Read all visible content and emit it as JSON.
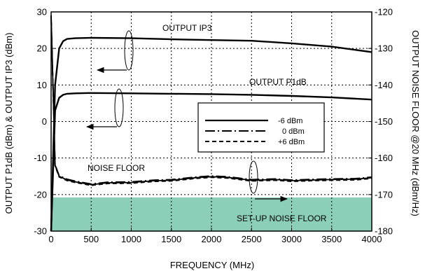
{
  "chart_data": {
    "type": "line",
    "xlabel": "FREQUENCY (MHz)",
    "ylabel": "OUTPUT P1dB (dBm) & OUTPUT IP3 (dBm)",
    "ylabel_right": "OUTPUT NOISE FLOOR @20 MHz (dBm/Hz)",
    "xlim": [
      0,
      4000
    ],
    "ylim": [
      -30,
      30
    ],
    "ylim_right": [
      -180,
      -120
    ],
    "x_ticks": [
      "0",
      "500",
      "1000",
      "1500",
      "2000",
      "2500",
      "3000",
      "3500",
      "4000"
    ],
    "y_ticks": [
      "-30",
      "-20",
      "-10",
      "0",
      "10",
      "20",
      "30"
    ],
    "y_ticks_right": [
      "-180",
      "-170",
      "-160",
      "-150",
      "-140",
      "-130",
      "-120"
    ],
    "grid": true,
    "colors": {
      "line": "#000000",
      "shade": "#8ccfb8"
    },
    "legend": {
      "position": "center-right",
      "entries": [
        {
          "label": "-6 dBm",
          "style": "solid"
        },
        {
          "label": "0 dBm",
          "style": "dash-dot"
        },
        {
          "label": "+6 dBm",
          "style": "dashed"
        }
      ]
    },
    "annotations": {
      "ip3": "OUTPUT IP3",
      "p1db": "OUTPUT P1dB",
      "noise": "NOISE FLOOR",
      "setup": "SET-UP NOISE FLOOR"
    },
    "series": [
      {
        "group": "OUTPUT IP3",
        "axis": "left",
        "x": [
          0,
          50,
          100,
          150,
          200,
          300,
          500,
          1000,
          1500,
          2000,
          2500,
          3000,
          3500,
          4000
        ],
        "values": [
          -30,
          10,
          20,
          22,
          22.6,
          22.8,
          22.9,
          22.8,
          22.5,
          22.3,
          22.1,
          21.4,
          20.5,
          19
        ]
      },
      {
        "group": "OUTPUT P1dB",
        "axis": "left",
        "x": [
          0,
          50,
          100,
          150,
          200,
          300,
          500,
          1000,
          1500,
          2000,
          2500,
          3000,
          3500,
          4000
        ],
        "values": [
          -30,
          3,
          6.5,
          7.3,
          7.6,
          7.7,
          7.8,
          7.7,
          7.6,
          7.5,
          7.3,
          7,
          6.6,
          6
        ]
      },
      {
        "group": "NOISE FLOOR",
        "axis": "right",
        "style": "solid",
        "x": [
          0,
          50,
          100,
          200,
          300,
          500,
          700,
          1000,
          1300,
          1500,
          1800,
          2000,
          2200,
          2500,
          2800,
          3000,
          3300,
          3500,
          3800,
          4000
        ],
        "values": [
          -121,
          -162,
          -165,
          -166,
          -166.5,
          -167.3,
          -166.8,
          -166.7,
          -166.2,
          -166.1,
          -165.4,
          -165.1,
          -165.3,
          -166.1,
          -165.9,
          -166.2,
          -166,
          -165.9,
          -165.8,
          -165.4
        ]
      },
      {
        "group": "NOISE FLOOR",
        "axis": "right",
        "style": "dash-dot",
        "x": [
          0,
          50,
          100,
          200,
          300,
          500,
          700,
          1000,
          1300,
          1500,
          1800,
          2000,
          2200,
          2500,
          2800,
          3000,
          3300,
          3500,
          3800,
          4000
        ],
        "values": [
          -121,
          -161.8,
          -164.8,
          -165.8,
          -166.3,
          -167.1,
          -166.6,
          -166.5,
          -166,
          -165.9,
          -165.2,
          -164.9,
          -165.1,
          -165.9,
          -165.7,
          -166,
          -165.8,
          -165.7,
          -165.6,
          -165.2
        ]
      },
      {
        "group": "NOISE FLOOR",
        "axis": "right",
        "style": "dashed",
        "x": [
          0,
          50,
          100,
          200,
          300,
          500,
          700,
          1000,
          1300,
          1500,
          1800,
          2000,
          2200,
          2500,
          2800,
          3000,
          3300,
          3500,
          3800,
          4000
        ],
        "values": [
          -121,
          -162.2,
          -165.2,
          -166.2,
          -166.7,
          -167.5,
          -167,
          -166.9,
          -166.4,
          -166.3,
          -165.6,
          -165.3,
          -165.5,
          -166.3,
          -166.1,
          -166.4,
          -166.2,
          -166.1,
          -166,
          -165.6
        ]
      }
    ],
    "shaded_region": {
      "label": "SET-UP NOISE FLOOR",
      "x_range": [
        0,
        4000
      ],
      "y_range_right": [
        -180,
        -170.8
      ]
    }
  }
}
